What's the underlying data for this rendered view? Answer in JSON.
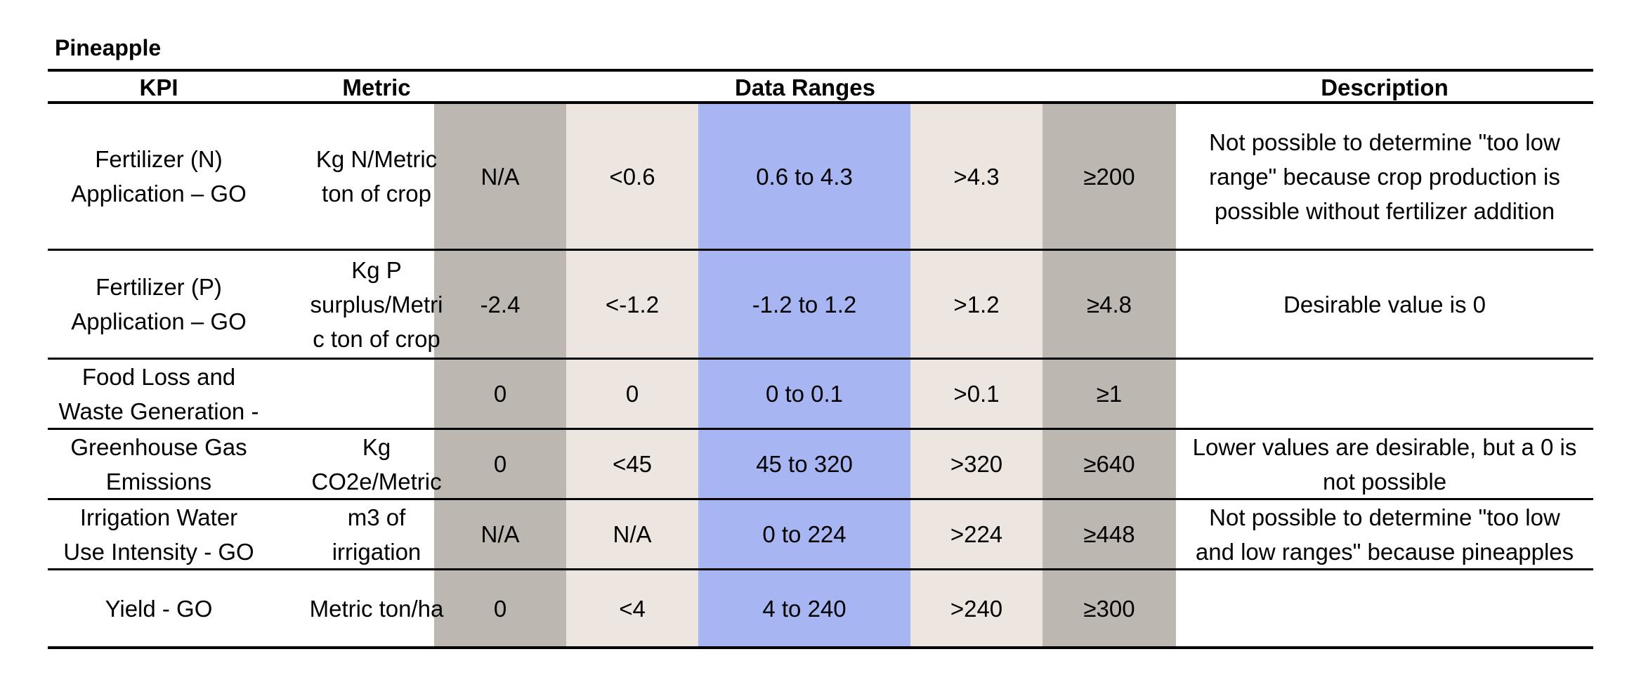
{
  "title": "Pineapple",
  "headers": {
    "kpi": "KPI",
    "metric": "Metric",
    "ranges": "Data Ranges",
    "description": "Description"
  },
  "rows": [
    {
      "kpi": [
        "Fertilizer (N)",
        "Application – GO"
      ],
      "metric": [
        "Kg N/Metric",
        "ton of crop"
      ],
      "r1": "N/A",
      "r2": "<0.6",
      "r3": "0.6 to 4.3",
      "r4": ">4.3",
      "r5": "≥200",
      "description": [
        "Not possible to determine \"too low",
        "range\" because crop production is",
        "possible without fertilizer addition"
      ]
    },
    {
      "kpi": [
        "Fertilizer (P)",
        "Application – GO"
      ],
      "metric": [
        "Kg P",
        "surplus/Metri",
        "c ton of crop"
      ],
      "r1": "-2.4",
      "r2": "<-1.2",
      "r3": "-1.2 to 1.2",
      "r4": ">1.2",
      "r5": "≥4.8",
      "description": [
        "Desirable value is 0"
      ]
    },
    {
      "kpi": [
        "Food Loss and",
        "Waste Generation -"
      ],
      "metric": [],
      "r1": "0",
      "r2": "0",
      "r3": "0 to 0.1",
      "r4": ">0.1",
      "r5": "≥1",
      "description": []
    },
    {
      "kpi": [
        "Greenhouse Gas",
        "Emissions"
      ],
      "metric": [
        "Kg",
        "CO2e/Metric"
      ],
      "r1": "0",
      "r2": "<45",
      "r3": "45 to 320",
      "r4": ">320",
      "r5": "≥640",
      "description": [
        "Lower values are desirable, but a 0 is",
        "not possible"
      ]
    },
    {
      "kpi": [
        "Irrigation Water",
        "Use Intensity - GO"
      ],
      "metric": [
        "m3 of",
        "irrigation"
      ],
      "r1": "N/A",
      "r2": "N/A",
      "r3": "0 to 224",
      "r4": ">224",
      "r5": "≥448",
      "description": [
        "Not possible to determine \"too low",
        "and low ranges\" because pineapples"
      ]
    },
    {
      "kpi": [
        "Yield - GO"
      ],
      "metric": [
        "Metric ton/ha"
      ],
      "r1": "0",
      "r2": "<4",
      "r3": "4  to 240",
      "r4": ">240",
      "r5": "≥300",
      "description": []
    }
  ]
}
